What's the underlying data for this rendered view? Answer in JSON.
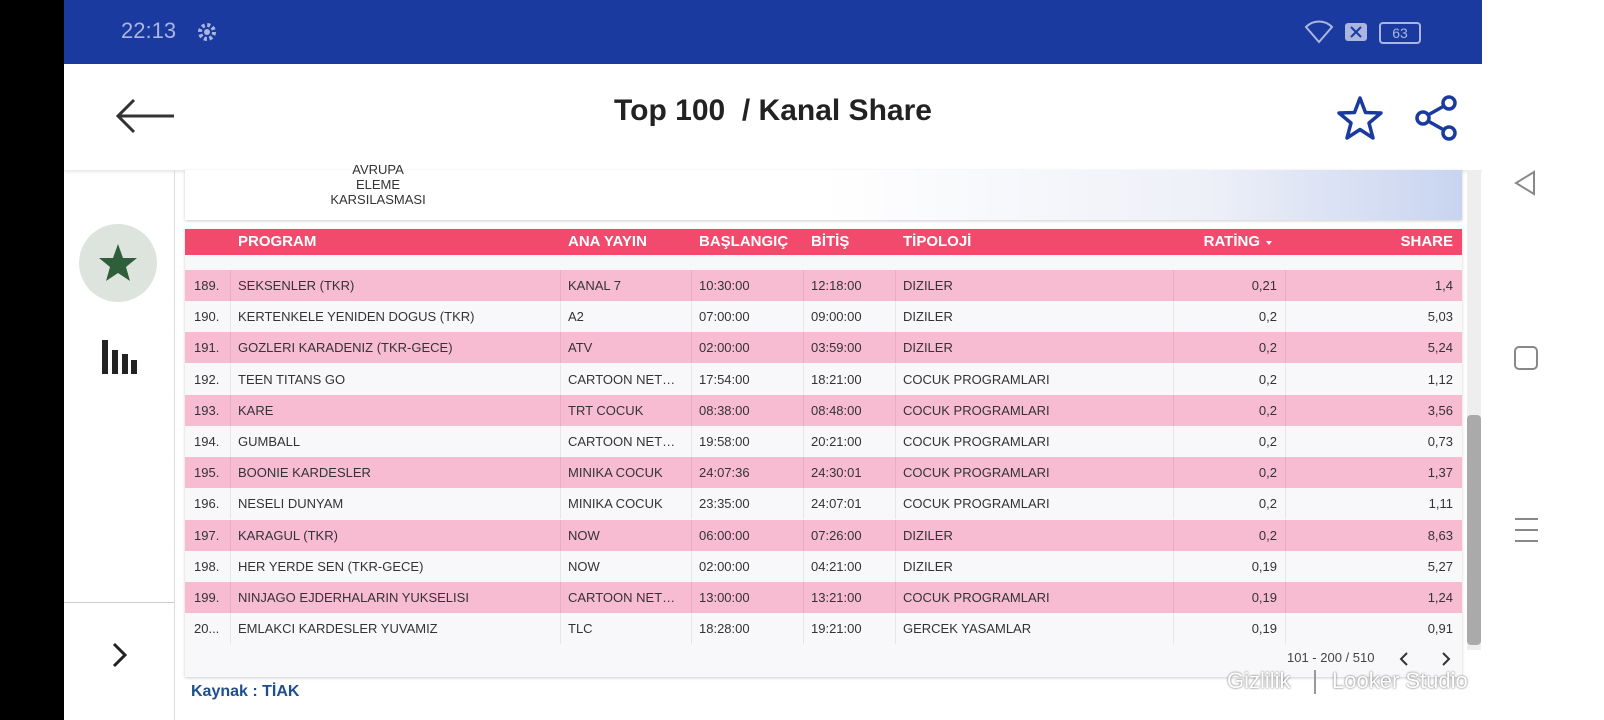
{
  "status": {
    "time": "22:13",
    "battery": "63"
  },
  "header": {
    "title": "Top 100  / Kanal Share"
  },
  "card": {
    "lines": [
      "AVRUPA",
      "ELEME",
      "KARSILASMASI"
    ]
  },
  "table": {
    "columns": [
      "PROGRAM",
      "ANA YAYIN",
      "BAŞLANGIÇ",
      "BİTİŞ",
      "TİPOLOJİ",
      "RATİNG",
      "SHARE"
    ],
    "rows": [
      [
        "189.",
        "SEKSENLER (TKR)",
        "KANAL 7",
        "10:30:00",
        "12:18:00",
        "DIZILER",
        "0,21",
        "1,4"
      ],
      [
        "190.",
        "KERTENKELE YENIDEN DOGUS (TKR)",
        "A2",
        "07:00:00",
        "09:00:00",
        "DIZILER",
        "0,2",
        "5,03"
      ],
      [
        "191.",
        "GOZLERI KARADENIZ (TKR-GECE)",
        "ATV",
        "02:00:00",
        "03:59:00",
        "DIZILER",
        "0,2",
        "5,24"
      ],
      [
        "192.",
        "TEEN TITANS GO",
        "CARTOON NET…",
        "17:54:00",
        "18:21:00",
        "COCUK PROGRAMLARI",
        "0,2",
        "1,12"
      ],
      [
        "193.",
        "KARE",
        "TRT COCUK",
        "08:38:00",
        "08:48:00",
        "COCUK PROGRAMLARI",
        "0,2",
        "3,56"
      ],
      [
        "194.",
        "GUMBALL",
        "CARTOON NET…",
        "19:58:00",
        "20:21:00",
        "COCUK PROGRAMLARI",
        "0,2",
        "0,73"
      ],
      [
        "195.",
        "BOONIE KARDESLER",
        "MINIKA COCUK",
        "24:07:36",
        "24:30:01",
        "COCUK PROGRAMLARI",
        "0,2",
        "1,37"
      ],
      [
        "196.",
        "NESELI DUNYAM",
        "MINIKA COCUK",
        "23:35:00",
        "24:07:01",
        "COCUK PROGRAMLARI",
        "0,2",
        "1,11"
      ],
      [
        "197.",
        "KARAGUL (TKR)",
        "NOW",
        "06:00:00",
        "07:26:00",
        "DIZILER",
        "0,2",
        "8,63"
      ],
      [
        "198.",
        "HER YERDE SEN (TKR-GECE)",
        "NOW",
        "02:00:00",
        "04:21:00",
        "DIZILER",
        "0,19",
        "5,27"
      ],
      [
        "199.",
        "NINJAGO EJDERHALARIN YUKSELISI",
        "CARTOON NET…",
        "13:00:00",
        "13:21:00",
        "COCUK PROGRAMLARI",
        "0,19",
        "1,24"
      ],
      [
        "20...",
        "EMLAKCI KARDESLER YUVAMIZ",
        "TLC",
        "18:28:00",
        "19:21:00",
        "GERCEK YASAMLAR",
        "0,19",
        "0,91"
      ]
    ],
    "pagination": "101 - 200 / 510"
  },
  "footer": {
    "source": "Kaynak : TİAK",
    "privacy": "Gizlilik",
    "brand": "Looker Studio"
  }
}
